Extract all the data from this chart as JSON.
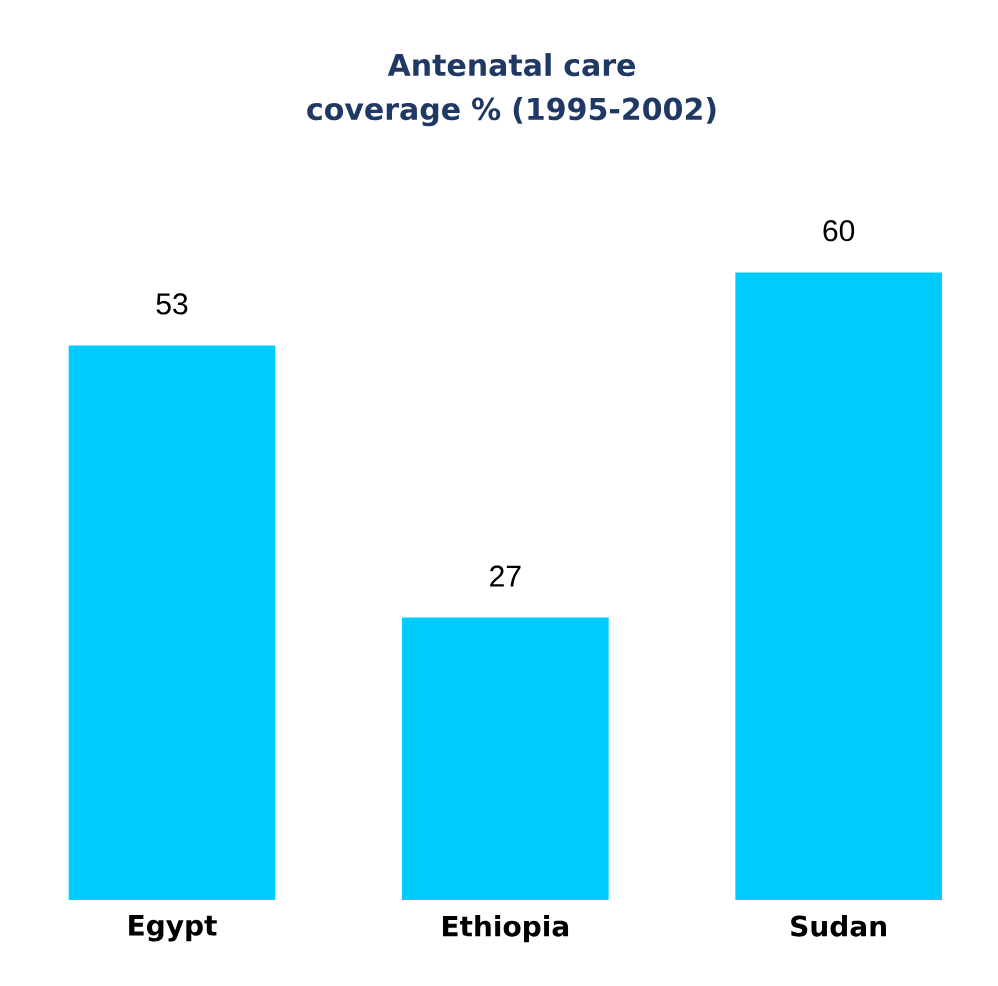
{
  "chart_data": {
    "type": "bar",
    "title": "Antenatal care coverage % (1995-2002)",
    "categories": [
      "Egypt",
      "Ethiopia",
      "Sudan"
    ],
    "values": [
      53,
      27,
      60
    ],
    "color": "#00ccff",
    "data_labels": true
  }
}
